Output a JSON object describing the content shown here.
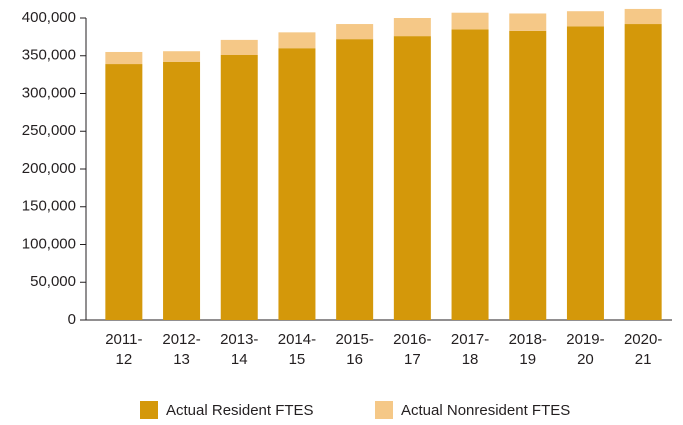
{
  "chart_data": {
    "type": "stacked_bar",
    "categories": [
      "2011-12",
      "2012-13",
      "2013-14",
      "2014-15",
      "2015-16",
      "2016-17",
      "2017-18",
      "2018-19",
      "2019-20",
      "2020-21"
    ],
    "series": [
      {
        "name": "Actual Resident FTES",
        "color": "#d4980a",
        "values": [
          339000,
          342000,
          351000,
          360000,
          372000,
          376000,
          385000,
          383000,
          389000,
          392000
        ]
      },
      {
        "name": "Actual Nonresident FTES",
        "color": "#f5c887",
        "values": [
          16000,
          14000,
          20000,
          21000,
          20000,
          24000,
          22000,
          23000,
          20000,
          20000
        ]
      }
    ],
    "ylim": [
      0,
      400000
    ],
    "yticks": [
      0,
      {
        "value": 50000,
        "label": "50,000"
      },
      {
        "value": 100000,
        "label": "100,000"
      },
      {
        "value": 150000,
        "label": "150,000"
      },
      {
        "value": 200000,
        "label": "200,000"
      },
      {
        "value": 250000,
        "label": "250,000"
      },
      {
        "value": 300000,
        "label": "300,000"
      },
      {
        "value": 350000,
        "label": "350,000"
      },
      {
        "value": 400000,
        "label": "400,000"
      }
    ],
    "legend": "bottom"
  }
}
